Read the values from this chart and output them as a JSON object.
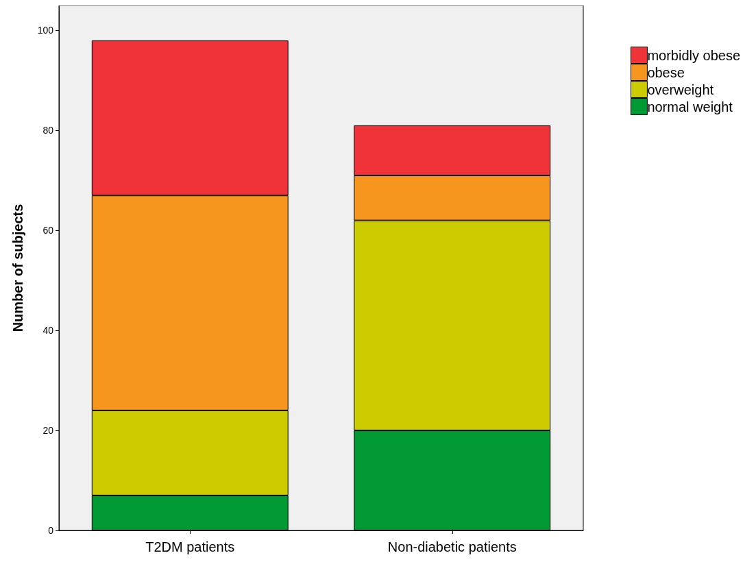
{
  "chart_data": {
    "type": "bar",
    "stacked": true,
    "ylabel": "Number of subjects",
    "categories": [
      "T2DM patients",
      "Non-diabetic patients"
    ],
    "series": [
      {
        "name": "normal weight",
        "color": "#009933",
        "values": [
          7,
          20
        ]
      },
      {
        "name": "overweight",
        "color": "#cccc00",
        "values": [
          17,
          42
        ]
      },
      {
        "name": "obese",
        "color": "#f7961e",
        "values": [
          43,
          9
        ]
      },
      {
        "name": "morbidly obese",
        "color": "#ef3338",
        "values": [
          31,
          10
        ]
      }
    ],
    "ylim": [
      0,
      105
    ],
    "yticks": [
      0,
      20,
      40,
      60,
      80,
      100
    ],
    "grid": false,
    "legend": "top right"
  }
}
